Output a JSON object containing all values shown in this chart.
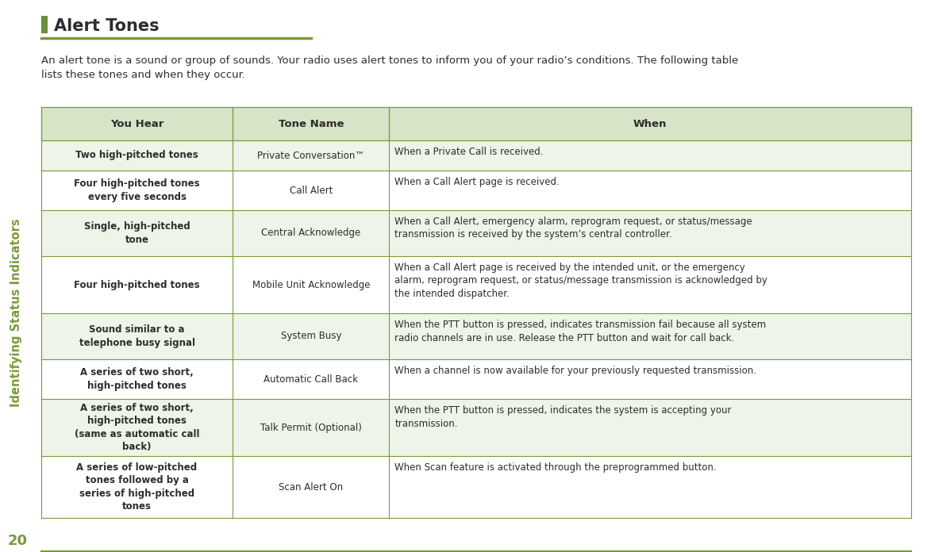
{
  "title": "Alert Tones",
  "title_color": "#2d2d2d",
  "title_bullet_color": "#6b8c3e",
  "underline_color": "#7a9a3a",
  "intro_text": "An alert tone is a sound or group of sounds. Your radio uses alert tones to inform you of your radio’s conditions. The following table\nlists these tones and when they occur.",
  "sidebar_text": "Identifying Status Indicators",
  "sidebar_color": "#7a9a3a",
  "page_number": "20",
  "header_bg": "#d8e4c8",
  "header_text_color": "#2d2d2d",
  "row_alt_bg": "#eef4e8",
  "row_white_bg": "#ffffff",
  "col_headers": [
    "You Hear",
    "Tone Name",
    "When"
  ],
  "rows": [
    {
      "you_hear": "Two high-pitched tones",
      "tone_name": "Private Conversation™",
      "when": "When a Private Call is received."
    },
    {
      "you_hear": "Four high-pitched tones\nevery five seconds",
      "tone_name": "Call Alert",
      "when": "When a Call Alert page is received."
    },
    {
      "you_hear": "Single, high-pitched\ntone",
      "tone_name": "Central Acknowledge",
      "when": "When a Call Alert, emergency alarm, reprogram request, or status/message\ntransmission is received by the system’s central controller."
    },
    {
      "you_hear": "Four high-pitched tones",
      "tone_name": "Mobile Unit Acknowledge",
      "when": "When a Call Alert page is received by the intended unit, or the emergency\nalarm, reprogram request, or status/message transmission is acknowledged by\nthe intended dispatcher."
    },
    {
      "you_hear": "Sound similar to a\ntelephone busy signal",
      "tone_name": "System Busy",
      "when": "When the PTT button is pressed, indicates transmission fail because all system\nradio channels are in use. Release the PTT button and wait for call back.",
      "when_ptt": true
    },
    {
      "you_hear": "A series of two short,\nhigh-pitched tones",
      "tone_name": "Automatic Call Back",
      "when": "When a channel is now available for your previously requested transmission."
    },
    {
      "you_hear": "A series of two short,\nhigh-pitched tones\n(same as automatic call\nback)",
      "tone_name": "Talk Permit (Optional)",
      "when": "When the PTT button is pressed, indicates the system is accepting your\ntransmission.",
      "when_ptt": true
    },
    {
      "you_hear": "A series of low-pitched\ntones followed by a\nseries of high-pitched\ntones",
      "tone_name": "Scan Alert On",
      "when": "When Scan feature is activated through the preprogrammed button."
    }
  ],
  "background_color": "#ffffff",
  "text_color": "#2d2d2d",
  "grid_line_color": "#7a9a3a",
  "font_size_title": 15,
  "font_size_intro": 9.5,
  "font_size_table": 8.5,
  "font_size_header": 9.5,
  "font_size_sidebar": 10.5,
  "font_size_pagenum": 13
}
